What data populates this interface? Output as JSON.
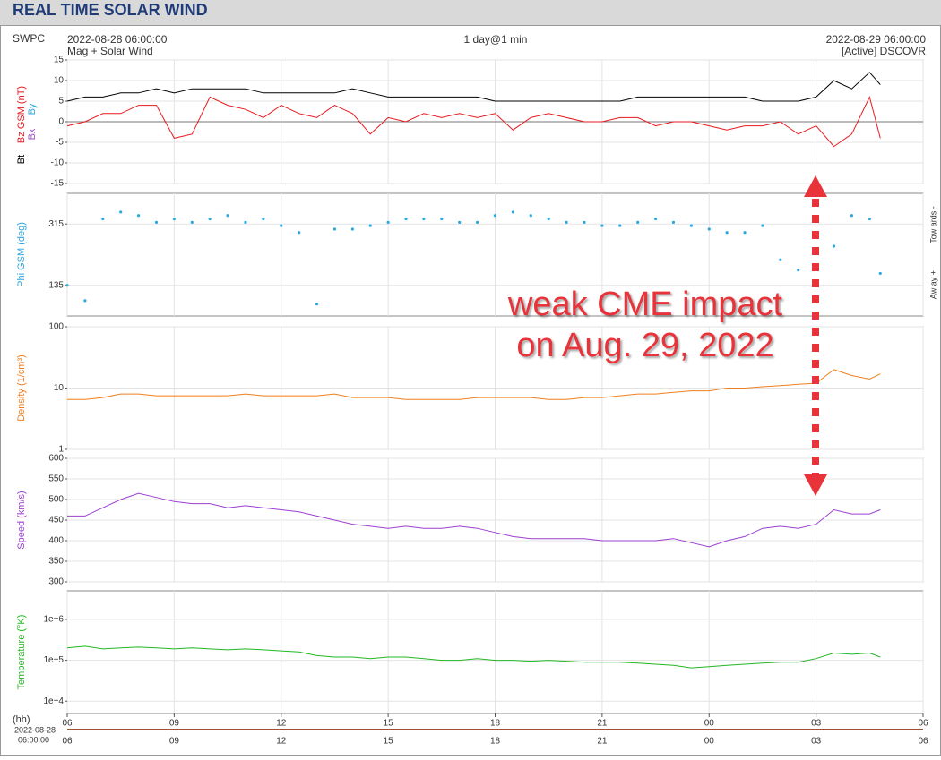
{
  "header": {
    "title": "REAL TIME SOLAR WIND",
    "source": "SWPC",
    "start": "2022-08-28 06:00:00",
    "subtitle": "Mag + Solar Wind",
    "resolution": "1 day@1 min",
    "end": "2022-08-29 06:00:00",
    "satellite": "[Active] DSCOVR"
  },
  "annotation": [
    "weak CME impact",
    "on Aug. 29, 2022"
  ],
  "bottom": {
    "unit": "(hh)",
    "date": "2022-08-28",
    "time": "06:00:00"
  },
  "chart_data": [
    {
      "type": "line",
      "ylim": [
        -15,
        15
      ],
      "yticks": [
        -15,
        -10,
        -5,
        0,
        5,
        10,
        15
      ],
      "xlim": [
        0,
        24
      ],
      "grid": true,
      "extra_labels": [
        {
          "text": "Bx",
          "color": "#9b4dca"
        },
        {
          "text": "By",
          "color": "#2aa8e0"
        }
      ],
      "x": [
        0,
        0.5,
        1,
        1.5,
        2,
        2.5,
        3,
        3.5,
        4,
        4.5,
        5,
        5.5,
        6,
        6.5,
        7,
        7.5,
        8,
        8.5,
        9,
        9.5,
        10,
        10.5,
        11,
        11.5,
        12,
        12.5,
        13,
        13.5,
        14,
        14.5,
        15,
        15.5,
        16,
        16.5,
        17,
        17.5,
        18,
        18.5,
        19,
        19.5,
        20,
        20.5,
        21,
        21.5,
        22,
        22.5,
        22.8
      ],
      "series": [
        {
          "name": "Bt",
          "color": "#000000",
          "values": [
            5,
            6,
            6,
            7,
            7,
            8,
            7,
            8,
            8,
            8,
            8,
            7,
            7,
            7,
            7,
            7,
            8,
            7,
            6,
            6,
            6,
            6,
            6,
            6,
            5,
            5,
            5,
            5,
            5,
            5,
            5,
            5,
            6,
            6,
            6,
            6,
            6,
            6,
            6,
            5,
            5,
            5,
            6,
            10,
            8,
            12,
            9
          ]
        },
        {
          "name": "Bz GSM (nT)",
          "color": "#e8191e",
          "values": [
            -1,
            0,
            2,
            2,
            4,
            4,
            -4,
            -3,
            6,
            4,
            3,
            1,
            4,
            2,
            1,
            4,
            2,
            -3,
            1,
            0,
            2,
            1,
            2,
            1,
            2,
            -2,
            1,
            2,
            1,
            0,
            0,
            1,
            1,
            -1,
            0,
            0,
            -1,
            -2,
            -1,
            -1,
            0,
            -3,
            -1,
            -6,
            -3,
            6,
            -4
          ]
        }
      ]
    },
    {
      "type": "scatter",
      "ylim": [
        45,
        405
      ],
      "yticks": [
        135,
        315
      ],
      "xlim": [
        0,
        24
      ],
      "grid": true,
      "right_labels": [
        "Tow ards -",
        "Aw ay +"
      ],
      "x": [
        0,
        0.5,
        1,
        1.5,
        2,
        2.5,
        3,
        3.5,
        4,
        4.5,
        5,
        5.5,
        6,
        6.5,
        7,
        7.5,
        8,
        8.5,
        9,
        9.5,
        10,
        10.5,
        11,
        11.5,
        12,
        12.5,
        13,
        13.5,
        14,
        14.5,
        15,
        15.5,
        16,
        16.5,
        17,
        17.5,
        18,
        18.5,
        19,
        19.5,
        20,
        20.5,
        21,
        21.5,
        22,
        22.5,
        22.8
      ],
      "series": [
        {
          "name": "Phi GSM (deg)",
          "color": "#2aa8e0",
          "values": [
            135,
            90,
            330,
            350,
            340,
            320,
            330,
            320,
            330,
            340,
            320,
            330,
            310,
            290,
            80,
            300,
            300,
            310,
            320,
            330,
            330,
            330,
            320,
            320,
            340,
            350,
            340,
            330,
            320,
            320,
            310,
            310,
            320,
            330,
            320,
            310,
            300,
            290,
            290,
            310,
            210,
            180,
            280,
            250,
            340,
            330,
            170
          ]
        }
      ]
    },
    {
      "type": "line",
      "log": true,
      "ylim": [
        1,
        100
      ],
      "yticks": [
        1,
        10,
        100
      ],
      "xlim": [
        0,
        24
      ],
      "grid": true,
      "x": [
        0,
        0.5,
        1,
        1.5,
        2,
        2.5,
        3,
        3.5,
        4,
        4.5,
        5,
        5.5,
        6,
        6.5,
        7,
        7.5,
        8,
        8.5,
        9,
        9.5,
        10,
        10.5,
        11,
        11.5,
        12,
        12.5,
        13,
        13.5,
        14,
        14.5,
        15,
        15.5,
        16,
        16.5,
        17,
        17.5,
        18,
        18.5,
        19,
        19.5,
        20,
        20.5,
        21,
        21.5,
        22,
        22.5,
        22.8
      ],
      "series": [
        {
          "name": "Density (1/cm³)",
          "color": "#f07f1e",
          "values": [
            6.5,
            6.5,
            7,
            8,
            8,
            7.5,
            7.5,
            7.5,
            7.5,
            7.5,
            8,
            7.5,
            7.5,
            7.5,
            7.5,
            8,
            7,
            7,
            7,
            6.5,
            6.5,
            6.5,
            6.5,
            7,
            7,
            7,
            7,
            6.5,
            6.5,
            7,
            7,
            7.5,
            8,
            8,
            8.5,
            9,
            9,
            10,
            10,
            10.5,
            11,
            11.5,
            12,
            20,
            16,
            14,
            17
          ]
        }
      ]
    },
    {
      "type": "line",
      "ylim": [
        300,
        600
      ],
      "yticks": [
        300,
        350,
        400,
        450,
        500,
        550,
        600
      ],
      "xlim": [
        0,
        24
      ],
      "grid": true,
      "x": [
        0,
        0.5,
        1,
        1.5,
        2,
        2.5,
        3,
        3.5,
        4,
        4.5,
        5,
        5.5,
        6,
        6.5,
        7,
        7.5,
        8,
        8.5,
        9,
        9.5,
        10,
        10.5,
        11,
        11.5,
        12,
        12.5,
        13,
        13.5,
        14,
        14.5,
        15,
        15.5,
        16,
        16.5,
        17,
        17.5,
        18,
        18.5,
        19,
        19.5,
        20,
        20.5,
        21,
        21.5,
        22,
        22.5,
        22.8
      ],
      "series": [
        {
          "name": "Speed (km/s)",
          "color": "#9b3fd0",
          "values": [
            460,
            460,
            480,
            500,
            515,
            505,
            495,
            490,
            490,
            480,
            485,
            480,
            475,
            470,
            460,
            450,
            440,
            435,
            430,
            435,
            430,
            430,
            435,
            430,
            420,
            410,
            405,
            405,
            405,
            405,
            400,
            400,
            400,
            400,
            405,
            395,
            385,
            400,
            410,
            430,
            435,
            430,
            440,
            475,
            465,
            465,
            475
          ]
        }
      ]
    },
    {
      "type": "line",
      "log": true,
      "ylim": [
        5000,
        5000000
      ],
      "yticks": [
        {
          "value": 10000,
          "label": "1e+4"
        },
        {
          "value": 100000,
          "label": "1e+5"
        },
        {
          "value": 1000000,
          "label": "1e+6"
        }
      ],
      "xlim": [
        0,
        24
      ],
      "grid": true,
      "xticks": [
        {
          "value": 0,
          "label": "06"
        },
        {
          "value": 3,
          "label": "09"
        },
        {
          "value": 6,
          "label": "12"
        },
        {
          "value": 9,
          "label": "15"
        },
        {
          "value": 12,
          "label": "18"
        },
        {
          "value": 15,
          "label": "21"
        },
        {
          "value": 18,
          "label": "00"
        },
        {
          "value": 21,
          "label": "03"
        },
        {
          "value": 24,
          "label": "06"
        }
      ],
      "x": [
        0,
        0.5,
        1,
        1.5,
        2,
        2.5,
        3,
        3.5,
        4,
        4.5,
        5,
        5.5,
        6,
        6.5,
        7,
        7.5,
        8,
        8.5,
        9,
        9.5,
        10,
        10.5,
        11,
        11.5,
        12,
        12.5,
        13,
        13.5,
        14,
        14.5,
        15,
        15.5,
        16,
        16.5,
        17,
        17.5,
        18,
        18.5,
        19,
        19.5,
        20,
        20.5,
        21,
        21.5,
        22,
        22.5,
        22.8
      ],
      "series": [
        {
          "name": "Temperature (°K)",
          "color": "#22b822",
          "values": [
            200000,
            220000,
            190000,
            200000,
            210000,
            200000,
            190000,
            200000,
            190000,
            180000,
            190000,
            180000,
            170000,
            160000,
            130000,
            120000,
            120000,
            110000,
            120000,
            120000,
            110000,
            100000,
            100000,
            110000,
            100000,
            100000,
            95000,
            100000,
            95000,
            90000,
            90000,
            90000,
            85000,
            80000,
            75000,
            65000,
            70000,
            75000,
            80000,
            85000,
            90000,
            90000,
            110000,
            150000,
            140000,
            150000,
            120000
          ]
        }
      ]
    }
  ]
}
